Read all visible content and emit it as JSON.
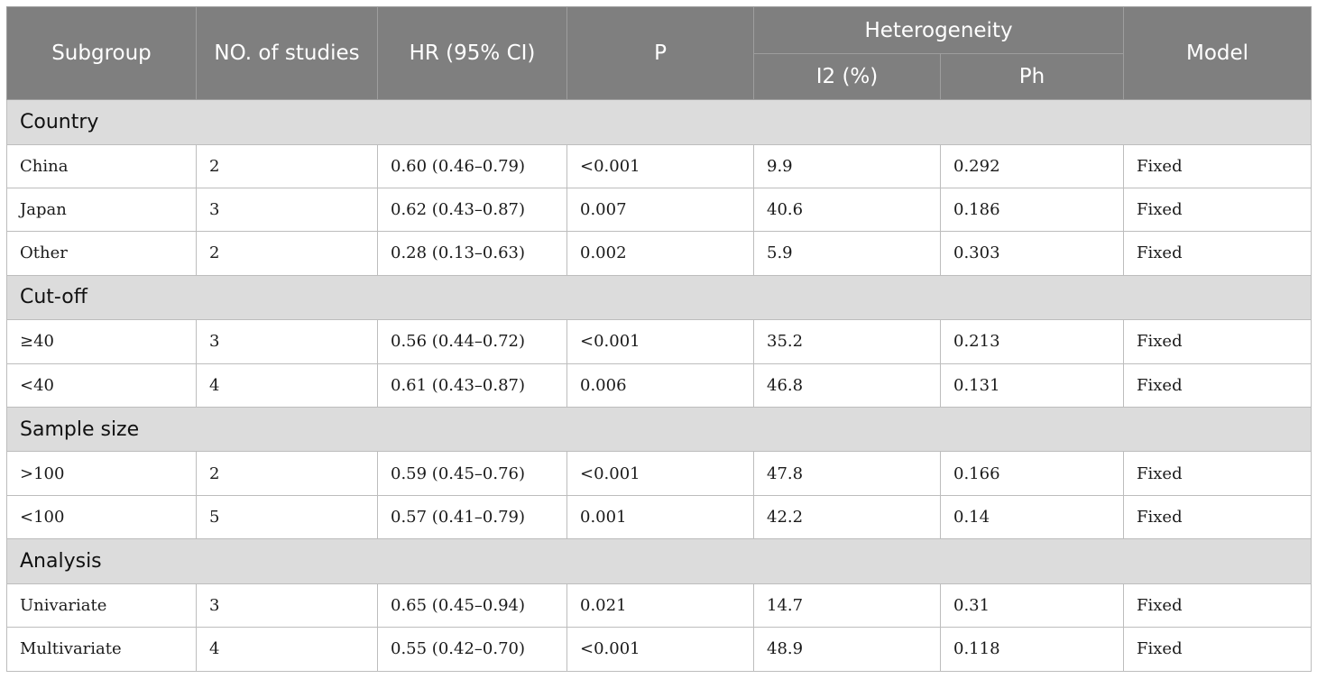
{
  "headers": {
    "subgroup": "Subgroup",
    "studies": "NO. of studies",
    "hr": "HR (95% CI)",
    "p": "P",
    "heterogeneity": "Heterogeneity",
    "i2": "I2 (%)",
    "ph": "Ph",
    "model": "Model"
  },
  "groups": [
    {
      "label": "Country",
      "rows": [
        {
          "subgroup": "China",
          "studies": "2",
          "hr": "0.60 (0.46–0.79)",
          "p": "<0.001",
          "i2": "9.9",
          "ph": "0.292",
          "model": "Fixed"
        },
        {
          "subgroup": "Japan",
          "studies": "3",
          "hr": "0.62 (0.43–0.87)",
          "p": "0.007",
          "i2": "40.6",
          "ph": "0.186",
          "model": "Fixed"
        },
        {
          "subgroup": "Other",
          "studies": "2",
          "hr": "0.28 (0.13–0.63)",
          "p": "0.002",
          "i2": "5.9",
          "ph": "0.303",
          "model": "Fixed"
        }
      ]
    },
    {
      "label": "Cut-off",
      "rows": [
        {
          "subgroup": "≥40",
          "studies": "3",
          "hr": "0.56 (0.44–0.72)",
          "p": "<0.001",
          "i2": "35.2",
          "ph": "0.213",
          "model": "Fixed"
        },
        {
          "subgroup": "<40",
          "studies": "4",
          "hr": "0.61 (0.43–0.87)",
          "p": "0.006",
          "i2": "46.8",
          "ph": "0.131",
          "model": "Fixed"
        }
      ]
    },
    {
      "label": "Sample size",
      "rows": [
        {
          "subgroup": ">100",
          "studies": "2",
          "hr": "0.59 (0.45–0.76)",
          "p": "<0.001",
          "i2": "47.8",
          "ph": "0.166",
          "model": "Fixed"
        },
        {
          "subgroup": "<100",
          "studies": "5",
          "hr": "0.57 (0.41–0.79)",
          "p": "0.001",
          "i2": "42.2",
          "ph": "0.14",
          "model": "Fixed"
        }
      ]
    },
    {
      "label": "Analysis",
      "rows": [
        {
          "subgroup": "Univariate",
          "studies": "3",
          "hr": "0.65 (0.45–0.94)",
          "p": "0.021",
          "i2": "14.7",
          "ph": "0.31",
          "model": "Fixed"
        },
        {
          "subgroup": "Multivariate",
          "studies": "4",
          "hr": "0.55 (0.42–0.70)",
          "p": "<0.001",
          "i2": "48.9",
          "ph": "0.118",
          "model": "Fixed"
        }
      ]
    }
  ]
}
